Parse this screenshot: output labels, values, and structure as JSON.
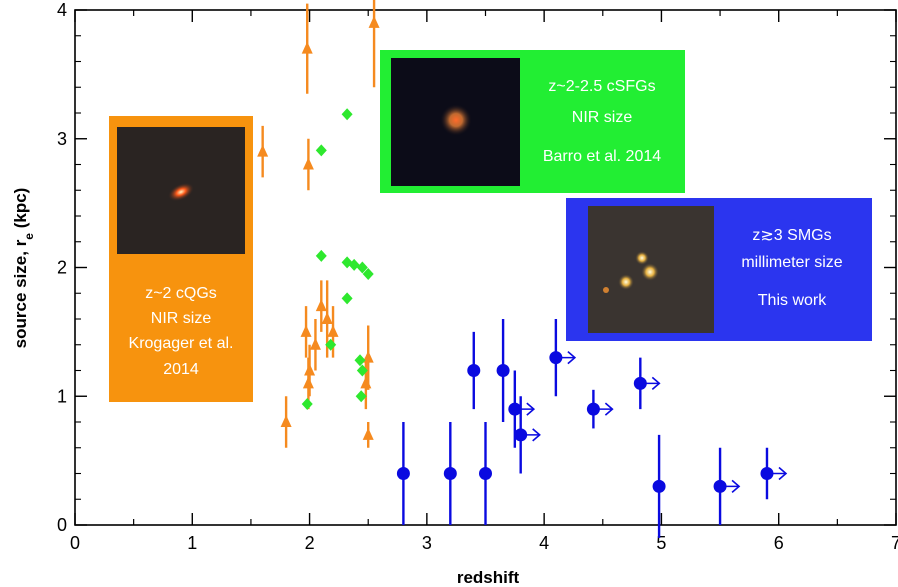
{
  "chart_data": {
    "type": "scatter",
    "xlabel": "redshift",
    "ylabel": "source size, r",
    "ylabel_sub": "e",
    "ylabel_unit": " (kpc)",
    "xlim": [
      0,
      7
    ],
    "ylim": [
      0,
      4
    ],
    "x_ticks": [
      0,
      1,
      2,
      3,
      4,
      5,
      6,
      7
    ],
    "y_ticks": [
      0,
      1,
      2,
      3,
      4
    ],
    "grid": false,
    "series": [
      {
        "marker": "triangle",
        "color": "#f58a1f",
        "points": [
          {
            "x": 1.6,
            "y": 2.9,
            "err": 0.2
          },
          {
            "x": 1.8,
            "y": 0.8,
            "err": 0.2
          },
          {
            "x": 1.97,
            "y": 1.5,
            "err": 0.2
          },
          {
            "x": 1.98,
            "y": 3.7,
            "err": 0.35
          },
          {
            "x": 1.99,
            "y": 2.8,
            "err": 0.2
          },
          {
            "x": 1.99,
            "y": 1.1,
            "err": 0.2
          },
          {
            "x": 2.0,
            "y": 1.2,
            "err": 0.2
          },
          {
            "x": 2.05,
            "y": 1.4,
            "err": 0.2
          },
          {
            "x": 2.1,
            "y": 1.7,
            "err": 0.2
          },
          {
            "x": 2.15,
            "y": 1.6,
            "err": 0.3
          },
          {
            "x": 2.2,
            "y": 1.5,
            "err": 0.2
          },
          {
            "x": 2.48,
            "y": 1.1,
            "err": 0.2
          },
          {
            "x": 2.5,
            "y": 1.3,
            "err": 0.25
          },
          {
            "x": 2.5,
            "y": 0.7,
            "err": 0.1
          },
          {
            "x": 2.55,
            "y": 3.9,
            "err": 0.5
          }
        ]
      },
      {
        "marker": "diamond",
        "color": "#2ee82e",
        "points": [
          {
            "x": 1.98,
            "y": 0.94
          },
          {
            "x": 2.1,
            "y": 2.91
          },
          {
            "x": 2.1,
            "y": 2.09
          },
          {
            "x": 2.18,
            "y": 1.4
          },
          {
            "x": 2.32,
            "y": 3.19
          },
          {
            "x": 2.32,
            "y": 2.04
          },
          {
            "x": 2.32,
            "y": 1.76
          },
          {
            "x": 2.38,
            "y": 2.02
          },
          {
            "x": 2.43,
            "y": 1.28
          },
          {
            "x": 2.44,
            "y": 1.0
          },
          {
            "x": 2.45,
            "y": 1.2
          },
          {
            "x": 2.45,
            "y": 2.0
          },
          {
            "x": 2.5,
            "y": 1.95
          }
        ]
      },
      {
        "marker": "circle",
        "color": "#0a0ae0",
        "points": [
          {
            "x": 2.8,
            "y": 0.4,
            "err": 0.4,
            "lower_limit": false
          },
          {
            "x": 3.2,
            "y": 0.4,
            "err": 0.4,
            "lower_limit": false
          },
          {
            "x": 3.5,
            "y": 0.4,
            "err": 0.4,
            "lower_limit": false
          },
          {
            "x": 3.4,
            "y": 1.2,
            "err": 0.3,
            "lower_limit": false
          },
          {
            "x": 3.65,
            "y": 1.2,
            "err": 0.4,
            "lower_limit": false
          },
          {
            "x": 3.75,
            "y": 0.9,
            "err": 0.3,
            "lower_limit": true
          },
          {
            "x": 3.8,
            "y": 0.7,
            "err": 0.3,
            "lower_limit": true
          },
          {
            "x": 4.1,
            "y": 1.3,
            "err": 0.3,
            "lower_limit": true
          },
          {
            "x": 4.42,
            "y": 0.9,
            "err": 0.15,
            "lower_limit": true
          },
          {
            "x": 4.82,
            "y": 1.1,
            "err": 0.2,
            "lower_limit": true
          },
          {
            "x": 4.98,
            "y": 0.3,
            "err": 0.4,
            "lower_limit": false
          },
          {
            "x": 5.5,
            "y": 0.3,
            "err": 0.3,
            "lower_limit": true
          },
          {
            "x": 5.9,
            "y": 0.4,
            "err": 0.2,
            "lower_limit": true
          }
        ]
      }
    ],
    "insets": [
      {
        "color": "#f7930e",
        "lines": [
          "z~2 cQGs",
          "NIR size",
          "Krogager et al.",
          "2014"
        ],
        "image": "compact-red-galaxy"
      },
      {
        "color": "#22ee33",
        "lines": [
          "z~2-2.5 cSFGs",
          "NIR size",
          "Barro et al. 2014"
        ],
        "image": "compact-orange-galaxy"
      },
      {
        "color": "#2b35ef",
        "lines": [
          "z≳3 SMGs",
          "millimeter size",
          "This work"
        ],
        "image": "clumpy-yellow-galaxy"
      }
    ]
  }
}
